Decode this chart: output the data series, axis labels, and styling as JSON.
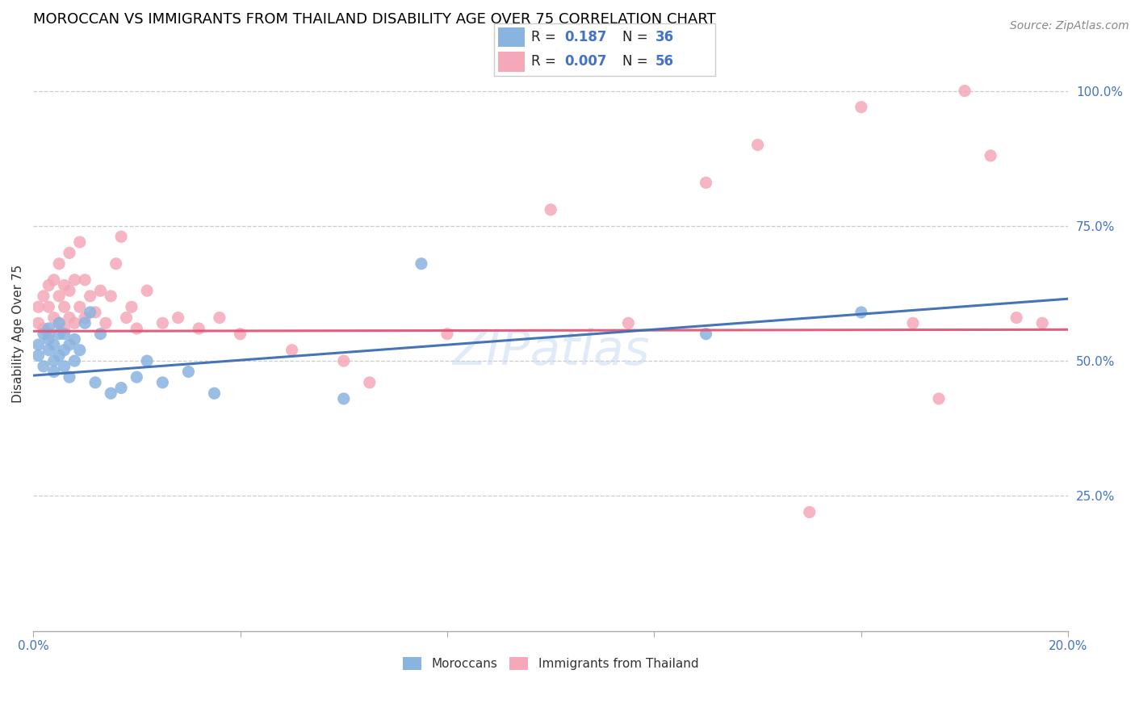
{
  "title": "MOROCCAN VS IMMIGRANTS FROM THAILAND DISABILITY AGE OVER 75 CORRELATION CHART",
  "source": "Source: ZipAtlas.com",
  "ylabel": "Disability Age Over 75",
  "xlim": [
    0.0,
    0.2
  ],
  "ylim": [
    0.0,
    1.1
  ],
  "moroccan_R": 0.187,
  "moroccan_N": 36,
  "thailand_R": 0.007,
  "thailand_N": 56,
  "moroccan_color": "#8ab4e0",
  "thailand_color": "#f4a8b8",
  "moroccan_line_color": "#3d6db5",
  "thailand_line_color": "#e05578",
  "background_color": "#ffffff",
  "grid_color": "#cccccc",
  "axis_label_color": "#4472c4",
  "watermark": "ZIPatlas",
  "mor_x": [
    0.001,
    0.001,
    0.002,
    0.002,
    0.003,
    0.003,
    0.003,
    0.004,
    0.004,
    0.004,
    0.005,
    0.005,
    0.005,
    0.006,
    0.006,
    0.006,
    0.007,
    0.007,
    0.008,
    0.008,
    0.009,
    0.01,
    0.011,
    0.012,
    0.013,
    0.015,
    0.017,
    0.02,
    0.022,
    0.025,
    0.03,
    0.035,
    0.06,
    0.075,
    0.13,
    0.16
  ],
  "mor_y": [
    0.51,
    0.53,
    0.49,
    0.55,
    0.52,
    0.54,
    0.56,
    0.48,
    0.5,
    0.53,
    0.51,
    0.55,
    0.57,
    0.49,
    0.52,
    0.55,
    0.47,
    0.53,
    0.5,
    0.54,
    0.52,
    0.57,
    0.59,
    0.46,
    0.55,
    0.44,
    0.45,
    0.47,
    0.5,
    0.46,
    0.48,
    0.44,
    0.43,
    0.68,
    0.55,
    0.59
  ],
  "thai_x": [
    0.001,
    0.001,
    0.002,
    0.002,
    0.003,
    0.003,
    0.003,
    0.004,
    0.004,
    0.005,
    0.005,
    0.005,
    0.006,
    0.006,
    0.006,
    0.007,
    0.007,
    0.007,
    0.008,
    0.008,
    0.009,
    0.009,
    0.01,
    0.01,
    0.011,
    0.012,
    0.013,
    0.014,
    0.015,
    0.016,
    0.017,
    0.018,
    0.019,
    0.02,
    0.022,
    0.025,
    0.028,
    0.032,
    0.036,
    0.04,
    0.05,
    0.06,
    0.065,
    0.08,
    0.1,
    0.115,
    0.13,
    0.14,
    0.15,
    0.16,
    0.17,
    0.175,
    0.18,
    0.185,
    0.19,
    0.195
  ],
  "thai_y": [
    0.57,
    0.6,
    0.56,
    0.62,
    0.55,
    0.6,
    0.64,
    0.58,
    0.65,
    0.57,
    0.62,
    0.68,
    0.56,
    0.6,
    0.64,
    0.58,
    0.63,
    0.7,
    0.57,
    0.65,
    0.6,
    0.72,
    0.58,
    0.65,
    0.62,
    0.59,
    0.63,
    0.57,
    0.62,
    0.68,
    0.73,
    0.58,
    0.6,
    0.56,
    0.63,
    0.57,
    0.58,
    0.56,
    0.58,
    0.55,
    0.52,
    0.5,
    0.46,
    0.55,
    0.78,
    0.57,
    0.83,
    0.9,
    0.22,
    0.97,
    0.57,
    0.43,
    1.0,
    0.88,
    0.58,
    0.57
  ],
  "mor_line_x0": 0.0,
  "mor_line_y0": 0.473,
  "mor_line_x1": 0.2,
  "mor_line_y1": 0.615,
  "thai_line_x0": 0.0,
  "thai_line_y0": 0.555,
  "thai_line_x1": 0.2,
  "thai_line_y1": 0.558
}
